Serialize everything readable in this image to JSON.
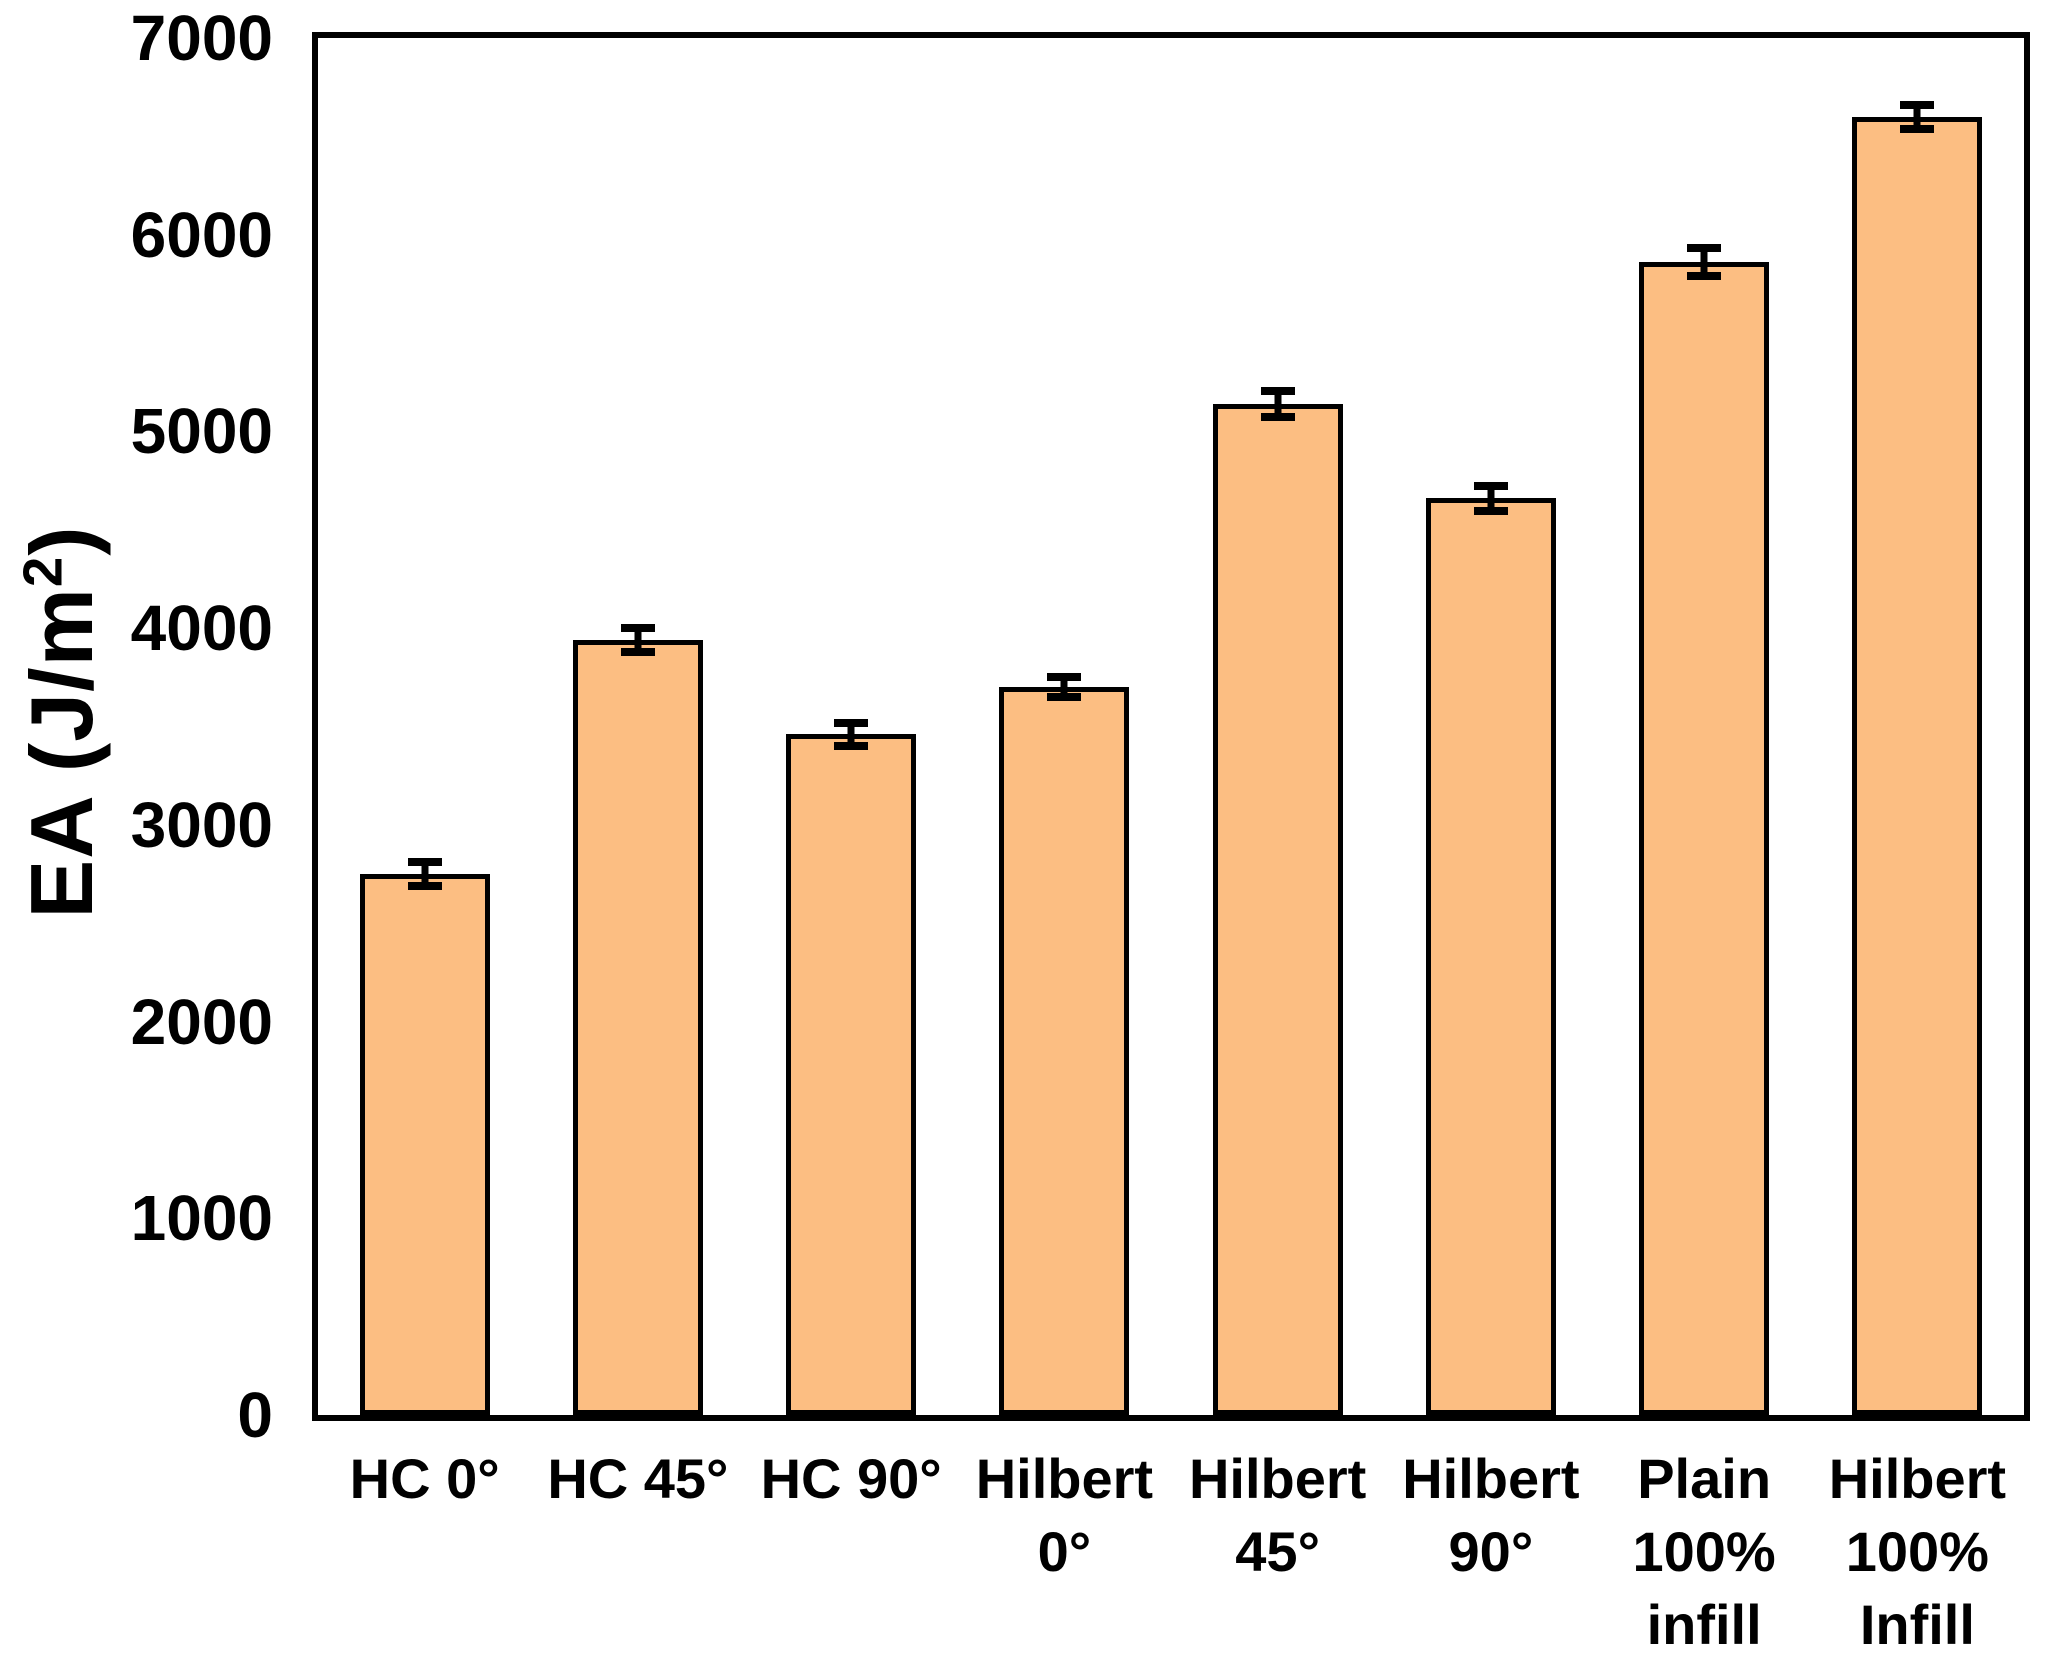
{
  "figure": {
    "background": "#FFFFFF",
    "y_axis_title": {
      "prefix": "EA (J/m",
      "superscript": "2",
      "suffix": ")"
    }
  },
  "chart_data": {
    "type": "bar",
    "title": "",
    "xlabel": "",
    "ylabel": "EA (J/m^2)",
    "ylim": [
      0,
      7000
    ],
    "ytick_step": 1000,
    "ytick_labels": [
      "0",
      "1000",
      "2000",
      "3000",
      "4000",
      "5000",
      "6000",
      "7000"
    ],
    "grid": false,
    "legend": "none",
    "bar_fill_color": "#FCBE82",
    "bar_border_color": "#000000",
    "error_bar_color": "#000000",
    "axis_color": "#000000",
    "categories": [
      "HC 0°",
      "HC 45°",
      "HC 90°",
      "Hilbert 0°",
      "Hilbert 45°",
      "Hilbert 90°",
      "Plain 100% infill",
      "Hilbert 100% Infill"
    ],
    "category_label_lines": [
      [
        "HC 0°"
      ],
      [
        "HC 45°"
      ],
      [
        "HC 90°"
      ],
      [
        "Hilbert",
        "0°"
      ],
      [
        "Hilbert",
        "45°"
      ],
      [
        "Hilbert",
        "90°"
      ],
      [
        "Plain",
        "100%",
        "infill"
      ],
      [
        "Hilbert",
        "100%",
        "Infill"
      ]
    ],
    "values": [
      2750,
      3940,
      3460,
      3700,
      5140,
      4660,
      5860,
      6600
    ],
    "errors": [
      60,
      60,
      60,
      50,
      65,
      65,
      70,
      60
    ]
  }
}
